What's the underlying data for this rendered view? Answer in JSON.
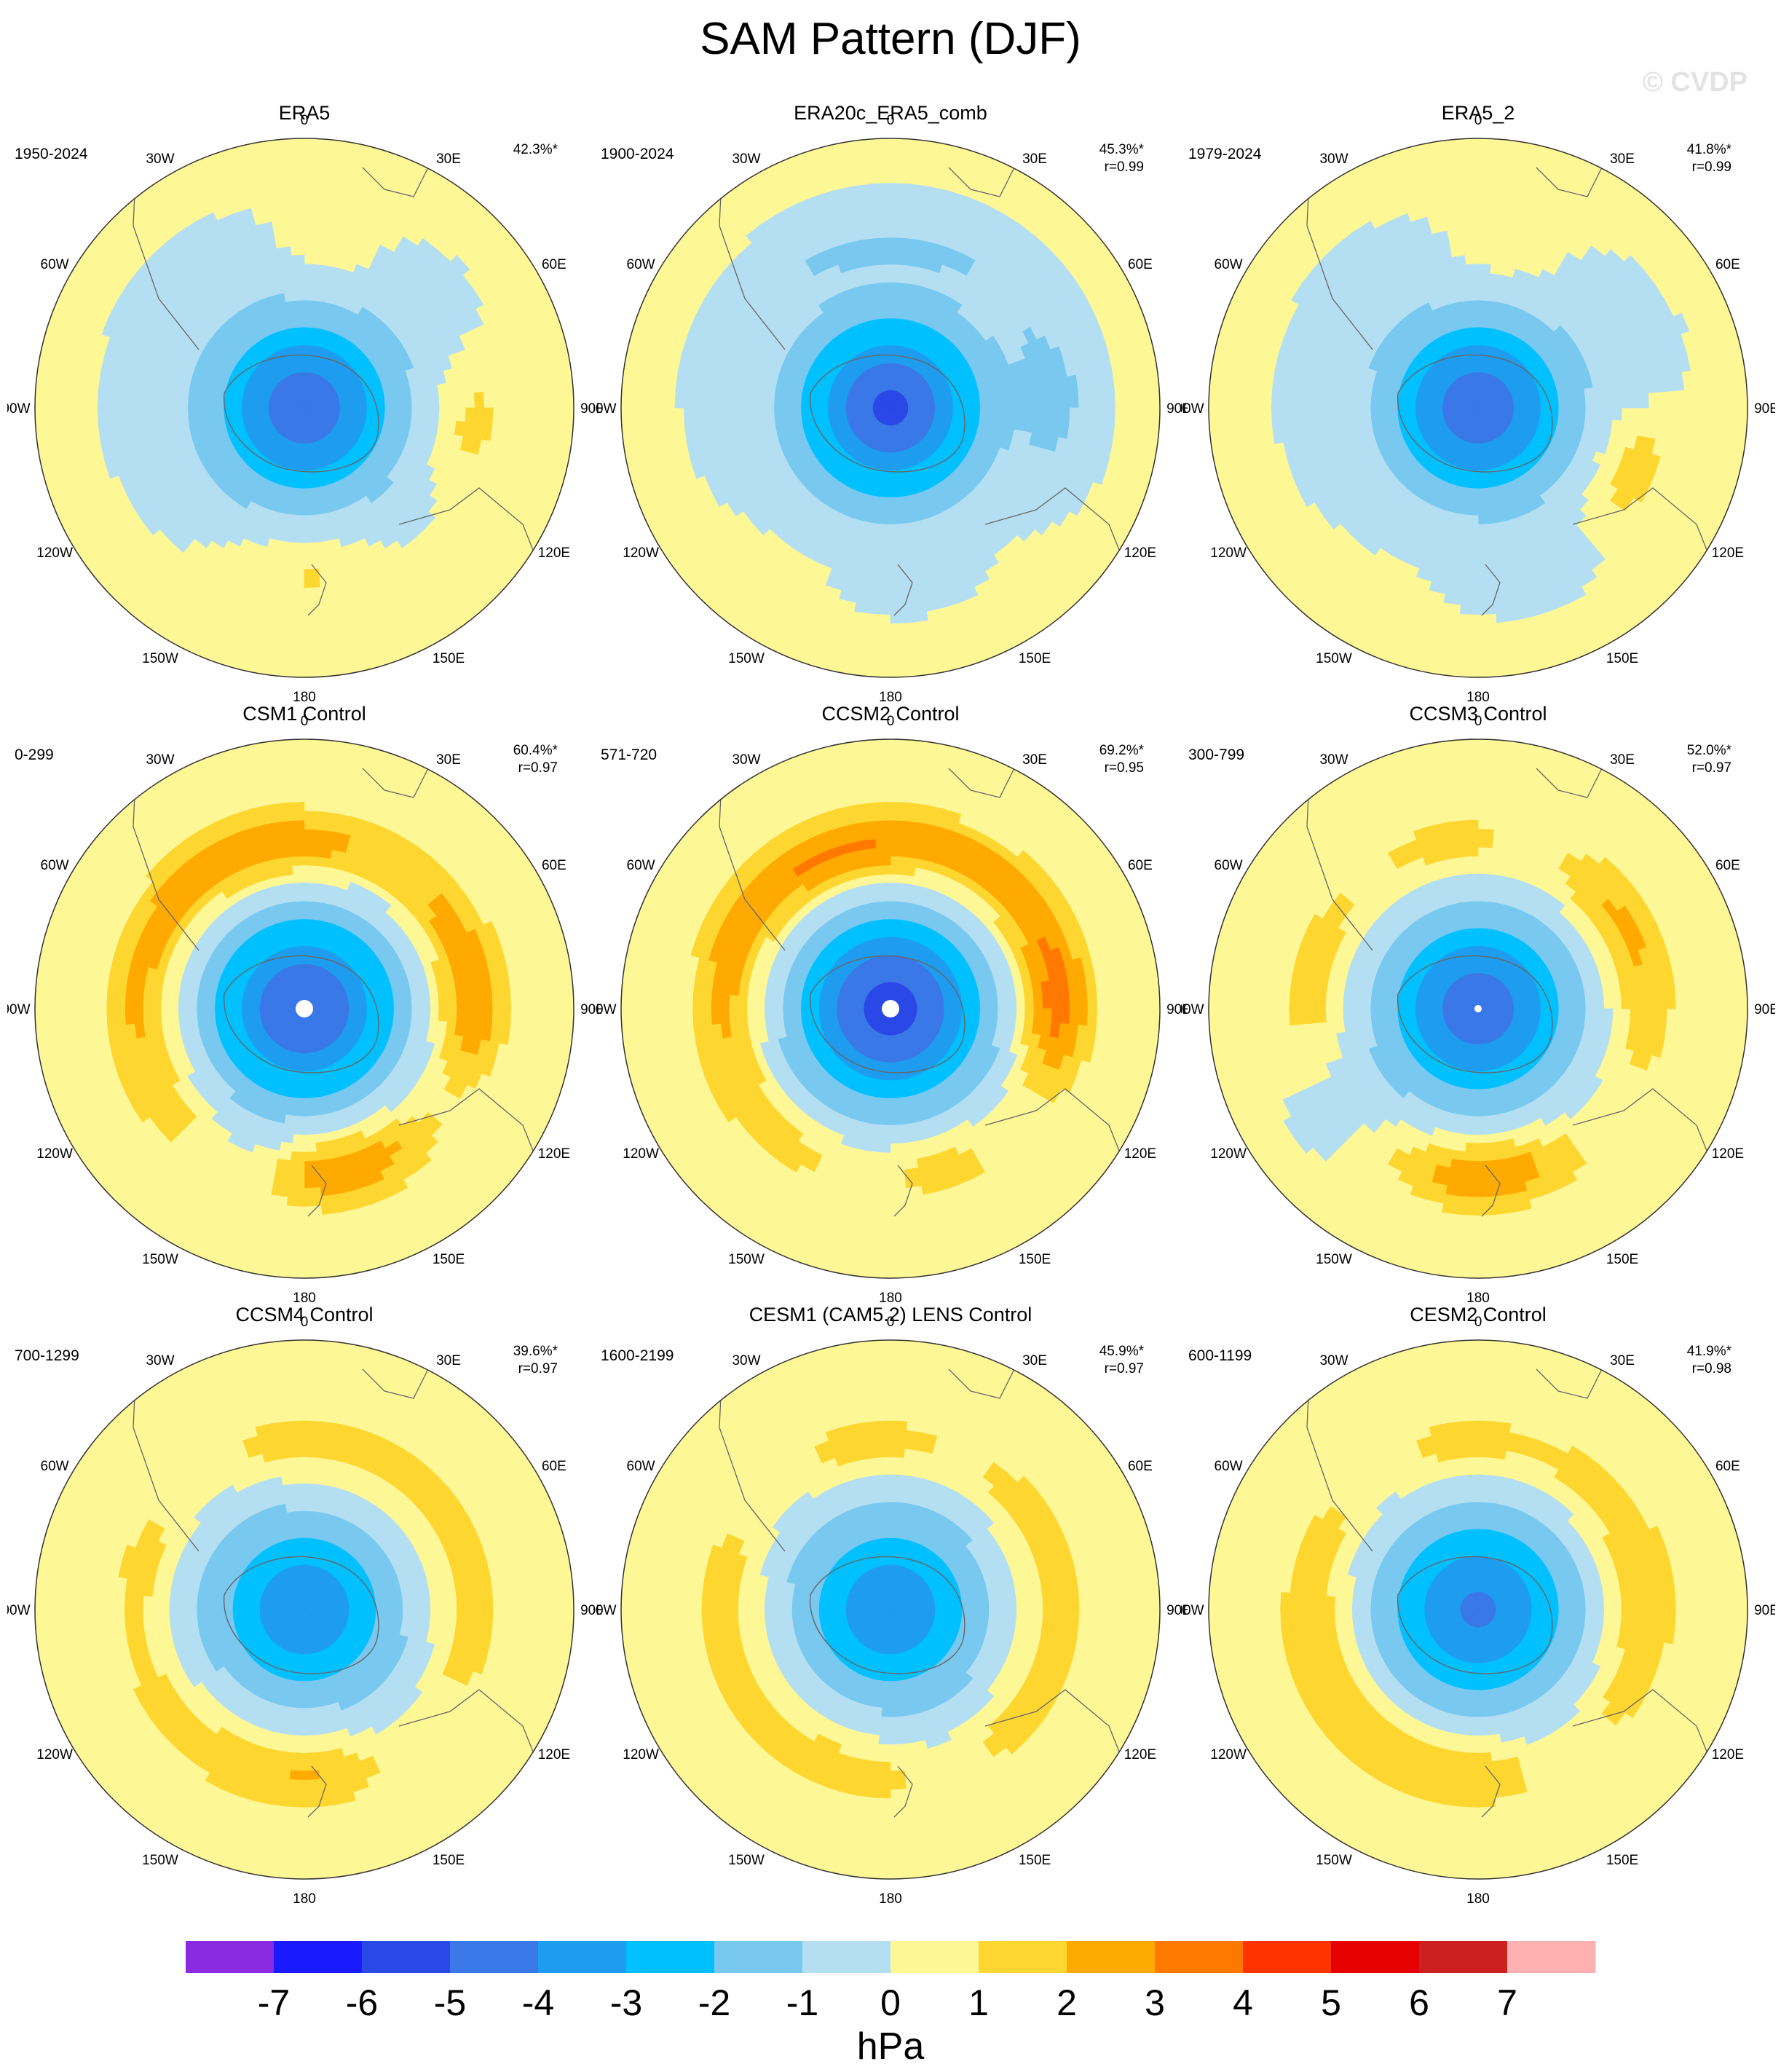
{
  "title": "SAM Pattern (DJF)",
  "watermark": "© CVDP",
  "chart_data": {
    "type": "heatmap",
    "title": "SAM Pattern (DJF)",
    "projection": "south-polar-stereographic",
    "units": "hPa",
    "longitude_labels": [
      "0",
      "30E",
      "60E",
      "90E",
      "120E",
      "150E",
      "180",
      "150W",
      "120W",
      "90W",
      "60W",
      "30W"
    ],
    "colorbar": {
      "labels": [
        "-7",
        "-6",
        "-5",
        "-4",
        "-3",
        "-2",
        "-1",
        "0",
        "1",
        "2",
        "3",
        "4",
        "5",
        "6",
        "7"
      ],
      "colors": [
        "#8a2be2",
        "#1a1aff",
        "#2a48e6",
        "#3a78e8",
        "#1e9cf0",
        "#00c0ff",
        "#78c8f0",
        "#b4dff2",
        "#fdf796",
        "#fed630",
        "#ffaa00",
        "#ff7800",
        "#ff3300",
        "#e60000",
        "#cc1f1f",
        "#ffb0b0"
      ]
    },
    "panels": [
      {
        "name": "ERA5",
        "years": "1950-2024",
        "variance": "42.3%*",
        "corr": "",
        "low": -4.8,
        "lat_low": -1.2,
        "lat_ring": -0.25,
        "lon_ring": -0.3,
        "inner_r": 0,
        "hpos": [
          {
            "lon": 95,
            "v": 1.5
          },
          {
            "lon": 175,
            "v": 1.4
          },
          {
            "lon": 10,
            "v": 1.2
          }
        ],
        "hneg": [
          {
            "lon": 165,
            "v": -0.4
          },
          {
            "lon": 20,
            "v": -0.2
          }
        ]
      },
      {
        "name": "ERA20c_ERA5_comb",
        "years": "1900-2024",
        "variance": "45.3%*",
        "corr": "r=0.99",
        "low": -5.2,
        "lat_low": -1.3,
        "lat_ring": -0.35,
        "lon_ring": -0.6,
        "inner_r": 0,
        "hpos": [],
        "hneg": [
          {
            "lon": 90,
            "v": -0.9
          },
          {
            "lon": 175,
            "v": -0.5
          }
        ]
      },
      {
        "name": "ERA5_2",
        "years": "1979-2024",
        "variance": "41.8%*",
        "corr": "r=0.99",
        "low": -4.6,
        "lat_low": -1.2,
        "lat_ring": -0.2,
        "lon_ring": -0.3,
        "inner_r": 0,
        "hpos": [
          {
            "lon": 110,
            "v": 1.6
          },
          {
            "lon": 10,
            "v": 1.2
          }
        ],
        "hneg": [
          {
            "lon": 160,
            "v": -0.6
          },
          {
            "lon": 75,
            "v": -0.5
          }
        ]
      },
      {
        "name": "CSM1 Control",
        "years": "0-299",
        "variance": "60.4%*",
        "corr": "r=0.97",
        "low": -5.0,
        "lat_low": -1.5,
        "lat_ring": 2.2,
        "lon_ring": 0.6,
        "inner_r": 12,
        "hpos": [
          {
            "lon": 170,
            "v": 1.6
          },
          {
            "lon": 95,
            "v": 1.2
          }
        ],
        "hneg": [
          {
            "lon": 200,
            "v": -1.6
          },
          {
            "lon": 115,
            "v": -1.3
          },
          {
            "lon": 30,
            "v": -0.9
          }
        ]
      },
      {
        "name": "CCSM2 Control",
        "years": "571-720",
        "variance": "69.2%*",
        "corr": "r=0.95",
        "low": -5.5,
        "lat_low": -1.7,
        "lat_ring": 2.3,
        "lon_ring": 1.0,
        "inner_r": 12,
        "hpos": [
          {
            "lon": 90,
            "v": 1.2
          },
          {
            "lon": 160,
            "v": 1.0
          }
        ],
        "hneg": [
          {
            "lon": 180,
            "v": -0.9
          },
          {
            "lon": 135,
            "v": -1.3
          },
          {
            "lon": 25,
            "v": -0.6
          }
        ]
      },
      {
        "name": "CCSM3 Control",
        "years": "300-799",
        "variance": "52.0%*",
        "corr": "r=0.97",
        "low": -4.6,
        "lat_low": -1.4,
        "lat_ring": 1.6,
        "lon_ring": 0.2,
        "inner_r": 5,
        "hpos": [
          {
            "lon": 175,
            "v": 1.5
          },
          {
            "lon": 60,
            "v": 0.6
          }
        ],
        "hneg": [
          {
            "lon": 235,
            "v": -1.8
          },
          {
            "lon": 20,
            "v": -0.9
          },
          {
            "lon": 130,
            "v": -0.9
          },
          {
            "lon": 320,
            "v": -0.8
          }
        ]
      },
      {
        "name": "CCSM4 Control",
        "years": "700-1299",
        "variance": "39.6%*",
        "corr": "r=0.97",
        "low": -3.9,
        "lat_low": -1.2,
        "lat_ring": 1.6,
        "lon_ring": 0.0,
        "inner_r": 0,
        "hpos": [
          {
            "lon": 175,
            "v": 0.6
          }
        ],
        "hneg": [
          {
            "lon": 140,
            "v": -1.3
          },
          {
            "lon": 320,
            "v": -1.0
          },
          {
            "lon": 260,
            "v": -0.5
          }
        ]
      },
      {
        "name": "CESM1 (CAM5.2) LENS Control",
        "years": "1600-2199",
        "variance": "45.9%*",
        "corr": "r=0.97",
        "low": -3.9,
        "lat_low": -1.2,
        "lat_ring": 1.6,
        "lon_ring": 0.0,
        "inner_r": 0,
        "hpos": [
          {
            "lon": 175,
            "v": 0.6
          }
        ],
        "hneg": [
          {
            "lon": 165,
            "v": -1.4
          },
          {
            "lon": 315,
            "v": -1.0
          },
          {
            "lon": 25,
            "v": -0.6
          }
        ]
      },
      {
        "name": "CESM2 Control",
        "years": "600-1199",
        "variance": "41.9%*",
        "corr": "r=0.98",
        "low": -4.2,
        "lat_low": -1.25,
        "lat_ring": 1.7,
        "lon_ring": 0.0,
        "inner_r": 0,
        "hpos": [
          {
            "lon": 175,
            "v": 0.5
          }
        ],
        "hneg": [
          {
            "lon": 150,
            "v": -1.4
          },
          {
            "lon": 320,
            "v": -1.0
          },
          {
            "lon": 20,
            "v": -0.5
          }
        ]
      }
    ]
  }
}
